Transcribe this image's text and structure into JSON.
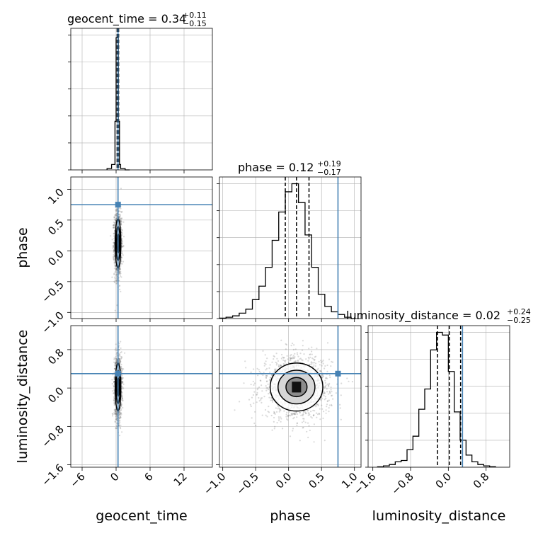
{
  "chart_data": {
    "type": "corner",
    "parameters": [
      "geocent_time",
      "phase",
      "luminosity_distance"
    ],
    "truths": {
      "geocent_time": 0.34,
      "phase": 0.75,
      "luminosity_distance": 0.3
    },
    "colors": {
      "truth": "#4682b4",
      "hist": "#000000",
      "grid": "#b0b0b0",
      "scatter": "#555555"
    },
    "grid": true,
    "panels": {
      "geocent_time": {
        "title_main": "geocent_time = 0.34",
        "title_sup": "+0.11",
        "title_sub": "−0.15",
        "median": 0.34,
        "q_low": 0.19,
        "q_high": 0.45,
        "xlim": [
          -8,
          17
        ],
        "ylim": [
          0,
          1.05
        ],
        "xticks": [
          -6,
          0,
          6,
          12
        ],
        "xticklabels": [
          "−6",
          "0",
          "6",
          "12"
        ],
        "hist": {
          "edges": [
            -1.6,
            -0.8,
            -0.2,
            0.0,
            0.2,
            0.4,
            0.6,
            0.8,
            1.6,
            2.4
          ],
          "counts": [
            0.01,
            0.04,
            0.36,
            0.98,
            0.98,
            0.36,
            0.04,
            0.01,
            0
          ]
        }
      },
      "phase": {
        "title_main": "phase = 0.12",
        "title_sup": "+0.19",
        "title_sub": "−0.17",
        "median": 0.12,
        "q_low": -0.05,
        "q_high": 0.31,
        "xlim": [
          -1.05,
          1.1
        ],
        "xticks": [
          -1.0,
          -0.5,
          0.0,
          0.5,
          1.0
        ],
        "xticklabels": [
          "−1.0",
          "−0.5",
          "0.0",
          "0.5",
          "1.0"
        ],
        "yticks": [
          -1.0,
          -0.5,
          0.0,
          0.5,
          1.0
        ],
        "yticklabels": [
          "−1.0",
          "−0.5",
          "0.0",
          "0.5",
          "1.0"
        ],
        "ylim_as_y": [
          -1.1,
          1.2
        ],
        "hist": {
          "edges": [
            -1.05,
            -0.95,
            -0.85,
            -0.75,
            -0.65,
            -0.55,
            -0.45,
            -0.35,
            -0.25,
            -0.15,
            -0.05,
            0.05,
            0.15,
            0.25,
            0.35,
            0.45,
            0.55,
            0.65,
            0.75,
            0.85,
            0.95
          ],
          "counts": [
            0.003,
            0.01,
            0.02,
            0.04,
            0.07,
            0.14,
            0.24,
            0.38,
            0.58,
            0.79,
            0.94,
            1.0,
            0.86,
            0.62,
            0.38,
            0.18,
            0.09,
            0.05,
            0.03,
            0.01
          ]
        }
      },
      "luminosity_distance": {
        "title_main": "luminosity_distance = 0.02",
        "title_sup": "+0.24",
        "title_sub": "−0.25",
        "median": 0.02,
        "q_low": -0.23,
        "q_high": 0.26,
        "xlim": [
          -1.7,
          1.3
        ],
        "xticks": [
          -1.6,
          -0.8,
          0.0,
          0.8
        ],
        "xticklabels": [
          "−1.6",
          "−0.8",
          "0.0",
          "0.8"
        ],
        "yticks": [
          -1.6,
          -0.8,
          0.0,
          0.8
        ],
        "yticklabels": [
          "−1.6",
          "−0.8",
          "0.0",
          "0.8"
        ],
        "ylim_as_y": [
          -1.65,
          1.3
        ],
        "hist": {
          "edges": [
            -1.5,
            -1.375,
            -1.25,
            -1.125,
            -1.0,
            -0.875,
            -0.75,
            -0.625,
            -0.5,
            -0.375,
            -0.25,
            -0.125,
            0.0,
            0.125,
            0.25,
            0.375,
            0.5,
            0.625,
            0.75,
            0.875,
            1.0
          ],
          "counts": [
            0.003,
            0.01,
            0.02,
            0.04,
            0.05,
            0.13,
            0.23,
            0.43,
            0.58,
            0.87,
            1.0,
            0.98,
            0.71,
            0.41,
            0.2,
            0.09,
            0.04,
            0.02,
            0.01,
            0.004
          ]
        }
      }
    },
    "axis_labels": {
      "x": [
        "geocent_time",
        "phase",
        "luminosity_distance"
      ],
      "y": [
        "phase",
        "luminosity_distance"
      ]
    },
    "scatter_spread": {
      "geocent_time": 0.25,
      "phase": 0.2,
      "luminosity_distance": 0.25
    },
    "n_points": 1400
  }
}
